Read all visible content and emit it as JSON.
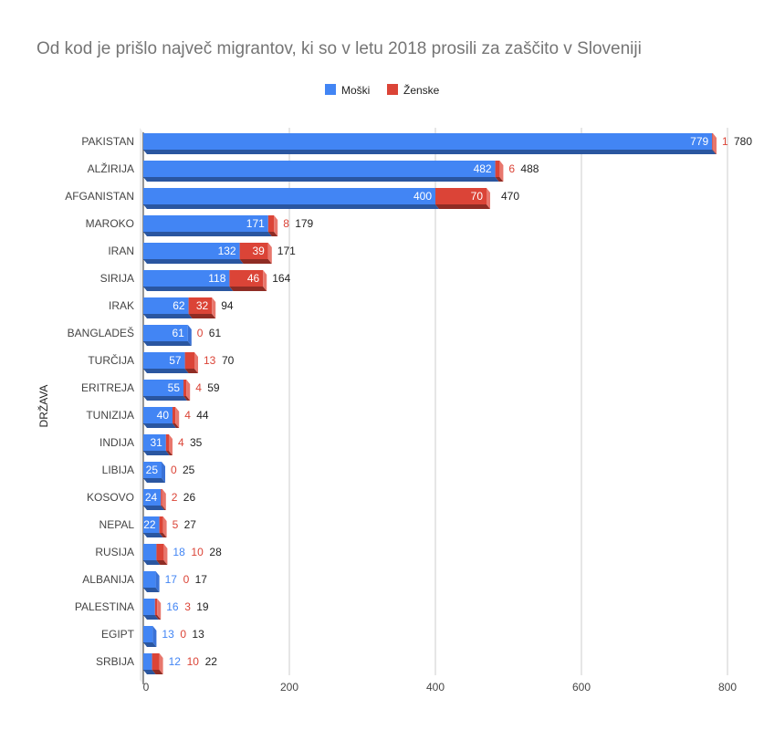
{
  "chart_data": {
    "type": "bar",
    "orientation": "horizontal",
    "stacked": true,
    "title": "Od kod je prišlo največ migrantov, ki so v letu 2018 prosili za zaščito v Sloveniji",
    "xlabel": "",
    "ylabel": "DRŽAVA",
    "xlim": [
      0,
      800
    ],
    "xticks": [
      0,
      200,
      400,
      600,
      800
    ],
    "grid": true,
    "legend_position": "top-center",
    "categories": [
      "PAKISTAN",
      "ALŽIRIJA",
      "AFGANISTAN",
      "MAROKO",
      "IRAN",
      "SIRIJA",
      "IRAK",
      "BANGLADEŠ",
      "TURČIJA",
      "ERITREJA",
      "TUNIZIJA",
      "INDIJA",
      "LIBIJA",
      "KOSOVO",
      "NEPAL",
      "RUSIJA",
      "ALBANIJA",
      "PALESTINA",
      "EGIPT",
      "SRBIJA"
    ],
    "series": [
      {
        "name": "Moški",
        "color": "#4285f4",
        "values": [
          779,
          482,
          400,
          171,
          132,
          118,
          62,
          61,
          57,
          55,
          40,
          31,
          25,
          24,
          22,
          18,
          17,
          16,
          13,
          12
        ]
      },
      {
        "name": "Ženske",
        "color": "#db4437",
        "values": [
          1,
          6,
          70,
          8,
          39,
          46,
          32,
          0,
          13,
          4,
          4,
          4,
          0,
          2,
          5,
          10,
          0,
          3,
          0,
          10
        ]
      }
    ],
    "totals": [
      780,
      488,
      470,
      179,
      171,
      164,
      94,
      61,
      70,
      59,
      44,
      35,
      25,
      26,
      27,
      28,
      17,
      19,
      13,
      22
    ]
  }
}
